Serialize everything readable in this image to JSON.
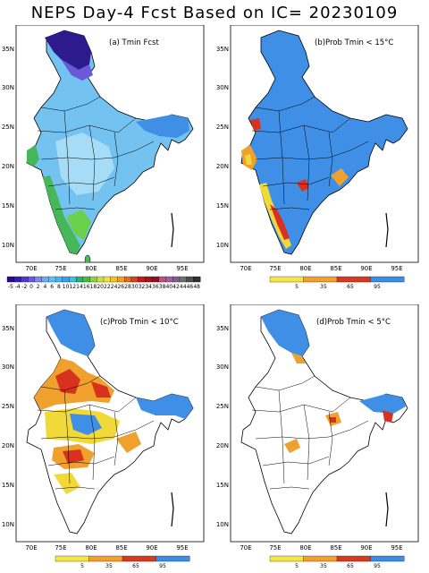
{
  "title": "NEPS Day-4 Fcst Based on IC= 20230109",
  "lat_ticks": [
    "35N",
    "30N",
    "25N",
    "20N",
    "15N",
    "10N"
  ],
  "lon_ticks": [
    "70E",
    "75E",
    "80E",
    "85E",
    "90E",
    "95E"
  ],
  "panels": [
    {
      "id": "a",
      "label": "(a) Tmin Fcst",
      "colorbar": {
        "ticks": [
          "-5",
          "-4",
          "-2",
          "0",
          "2",
          "4",
          "6",
          "8",
          "10",
          "12",
          "14",
          "16",
          "18",
          "20",
          "22",
          "24",
          "26",
          "28",
          "30",
          "32",
          "34",
          "36",
          "38",
          "40",
          "42",
          "44",
          "46",
          "48"
        ],
        "colors": [
          "#2a0a8a",
          "#3a1cb0",
          "#4f3ad0",
          "#6a5ae0",
          "#7f86ee",
          "#6fa8f5",
          "#5cc0f8",
          "#4fb0f0",
          "#3aa0e6",
          "#40c0d8",
          "#30b070",
          "#40c040",
          "#8fd040",
          "#c8e050",
          "#f0e040",
          "#f5c030",
          "#f0a020",
          "#e07020",
          "#d84020",
          "#c81818",
          "#b01010",
          "#901020",
          "#c05080",
          "#a060a0",
          "#806090",
          "#707070",
          "#505050",
          "#303030"
        ]
      }
    },
    {
      "id": "b",
      "label": "(b)Prob Tmin < 15°C",
      "colorbar": {
        "ticks": [
          "5",
          "35",
          "65",
          "95"
        ],
        "colors": [
          "#f5e44a",
          "#f0a030",
          "#d83a20",
          "#3a8ee6"
        ]
      }
    },
    {
      "id": "c",
      "label": "(c)Prob Tmin < 10°C",
      "colorbar": {
        "ticks": [
          "5",
          "35",
          "65",
          "95"
        ],
        "colors": [
          "#f5e44a",
          "#f0a030",
          "#d83a20",
          "#3a8ee6"
        ]
      }
    },
    {
      "id": "d",
      "label": "(d)Prob Tmin < 5°C",
      "colorbar": {
        "ticks": [
          "5",
          "35",
          "65",
          "95"
        ],
        "colors": [
          "#f5e44a",
          "#f0a030",
          "#d83a20",
          "#3a8ee6"
        ]
      }
    }
  ],
  "colors": {
    "blue": "#3f8fe6",
    "lightblue": "#73c2f0",
    "paleblue": "#a6dcf5",
    "green": "#47b85a",
    "lime": "#6bd04a",
    "yellow": "#f2d93a",
    "orange": "#f0a02c",
    "red": "#d8321e",
    "darkblue": "#2d1a8c",
    "purple": "#6a5ad8"
  }
}
